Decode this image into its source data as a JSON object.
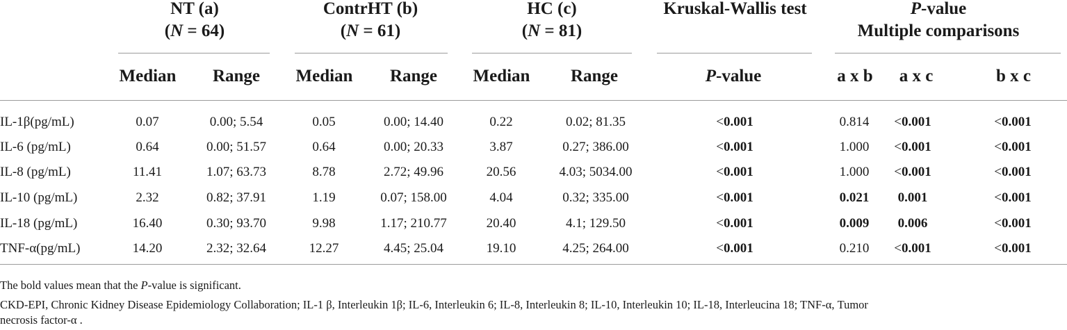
{
  "group_headers": {
    "nt": {
      "line1": "NT (a)",
      "n_label": "N",
      "n_value": "= 64"
    },
    "contrht": {
      "line1": "ContrHT (b)",
      "n_label": "N",
      "n_value": "= 61"
    },
    "hc": {
      "line1": "HC (c)",
      "n_label": "N",
      "n_value": "= 81"
    },
    "kw": {
      "line1": "Kruskal-Wallis test"
    },
    "pv": {
      "p": "P",
      "line1_rest": "-value",
      "line2": "Multiple comparisons"
    }
  },
  "subheaders": {
    "nt_median": "Median",
    "nt_range": "Range",
    "contrht_median": "Median",
    "contrht_range": "Range",
    "hc_median": "Median",
    "hc_range": "Range",
    "kw_p": "P",
    "kw_value": "-value",
    "axb": "a x b",
    "axc": "a x c",
    "bxc": "b x c"
  },
  "rows": [
    {
      "label": "IL-1β(pg/mL)",
      "nt_median": "0.07",
      "nt_range": "0.00; 5.54",
      "ct_median": "0.05",
      "ct_range": "0.00; 14.40",
      "hc_median": "0.22",
      "hc_range": "0.02; 81.35",
      "kw": {
        "prefix": "<",
        "value": "0.001",
        "bold": true
      },
      "axb": {
        "prefix": "",
        "value": "0.814",
        "bold": false
      },
      "axc": {
        "prefix": "<",
        "value": "0.001",
        "bold": true
      },
      "bxc": {
        "prefix": "<",
        "value": "0.001",
        "bold": true
      }
    },
    {
      "label": "IL-6 (pg/mL)",
      "nt_median": "0.64",
      "nt_range": "0.00; 51.57",
      "ct_median": "0.64",
      "ct_range": "0.00; 20.33",
      "hc_median": "3.87",
      "hc_range": "0.27; 386.00",
      "kw": {
        "prefix": "<",
        "value": "0.001",
        "bold": true
      },
      "axb": {
        "prefix": "",
        "value": "1.000",
        "bold": false
      },
      "axc": {
        "prefix": "<",
        "value": "0.001",
        "bold": true
      },
      "bxc": {
        "prefix": "<",
        "value": "0.001",
        "bold": true
      }
    },
    {
      "label": "IL-8 (pg/mL)",
      "nt_median": "11.41",
      "nt_range": "1.07; 63.73",
      "ct_median": "8.78",
      "ct_range": "2.72; 49.96",
      "hc_median": "20.56",
      "hc_range": "4.03; 5034.00",
      "kw": {
        "prefix": "<",
        "value": "0.001",
        "bold": true
      },
      "axb": {
        "prefix": "",
        "value": "1.000",
        "bold": false
      },
      "axc": {
        "prefix": "<",
        "value": "0.001",
        "bold": true
      },
      "bxc": {
        "prefix": "<",
        "value": "0.001",
        "bold": true
      }
    },
    {
      "label": "IL-10 (pg/mL)",
      "nt_median": "2.32",
      "nt_range": "0.82; 37.91",
      "ct_median": "1.19",
      "ct_range": "0.07; 158.00",
      "hc_median": "4.04",
      "hc_range": "0.32; 335.00",
      "kw": {
        "prefix": "<",
        "value": "0.001",
        "bold": true
      },
      "axb": {
        "prefix": "",
        "value": "0.021",
        "bold": true
      },
      "axc": {
        "prefix": "",
        "value": "0.001",
        "bold": true
      },
      "bxc": {
        "prefix": "<",
        "value": "0.001",
        "bold": true
      }
    },
    {
      "label": "IL-18 (pg/mL)",
      "nt_median": "16.40",
      "nt_range": "0.30; 93.70",
      "ct_median": "9.98",
      "ct_range": "1.17; 210.77",
      "hc_median": "20.40",
      "hc_range": "4.1; 129.50",
      "kw": {
        "prefix": "<",
        "value": "0.001",
        "bold": true
      },
      "axb": {
        "prefix": "",
        "value": "0.009",
        "bold": true
      },
      "axc": {
        "prefix": "",
        "value": "0.006",
        "bold": true
      },
      "bxc": {
        "prefix": "<",
        "value": "0.001",
        "bold": true
      }
    },
    {
      "label": "TNF-α(pg/mL)",
      "nt_median": "14.20",
      "nt_range": "2.32; 32.64",
      "ct_median": "12.27",
      "ct_range": "4.45; 25.04",
      "hc_median": "19.10",
      "hc_range": "4.25; 264.00",
      "kw": {
        "prefix": "<",
        "value": "0.001",
        "bold": true
      },
      "axb": {
        "prefix": "",
        "value": "0.210",
        "bold": false
      },
      "axc": {
        "prefix": "<",
        "value": "0.001",
        "bold": true
      },
      "bxc": {
        "prefix": "<",
        "value": "0.001",
        "bold": true
      }
    }
  ],
  "footnotes": {
    "note1_a": "The bold values mean that the ",
    "note1_p": "P",
    "note1_b": "-value is significant.",
    "note2_line1": "CKD-EPI, Chronic Kidney Disease Epidemiology Collaboration; IL-1 β, Interleukin 1β; IL-6, Interleukin 6; IL-8, Interleukin 8; IL-10, Interleukin 10; IL-18, Interleucina 18; TNF-α, Tumor",
    "note2_line2": "necrosis factor-α ."
  }
}
